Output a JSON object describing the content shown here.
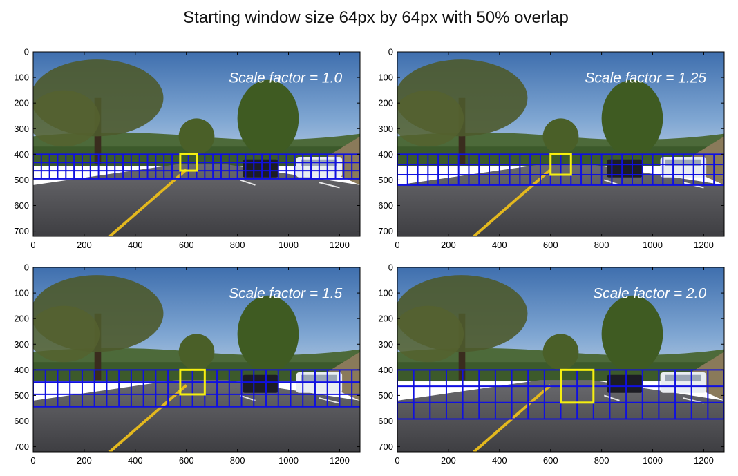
{
  "figure": {
    "title": "Starting window size 64px by 64px with 50% overlap"
  },
  "colors": {
    "search_grid": "#1010e0",
    "highlight_window": "#f5ef10",
    "scale_label": "#ffffff"
  },
  "chart_data": [
    {
      "type": "image",
      "annotation": "Scale factor = 1.0",
      "scale_factor": 1.0,
      "xlim": [
        0,
        1280
      ],
      "ylim": [
        720,
        0
      ],
      "xticks": [
        0,
        200,
        400,
        600,
        800,
        1000,
        1200
      ],
      "yticks": [
        0,
        100,
        200,
        300,
        400,
        500,
        600,
        700
      ],
      "grid": {
        "x_start": 0,
        "x_end": 1280,
        "y_start": 400,
        "y_end": 496,
        "step": 32
      },
      "highlight": {
        "x": 576,
        "y": 400,
        "w": 64,
        "h": 64
      }
    },
    {
      "type": "image",
      "annotation": "Scale factor = 1.25",
      "scale_factor": 1.25,
      "xlim": [
        0,
        1280
      ],
      "ylim": [
        720,
        0
      ],
      "xticks": [
        0,
        200,
        400,
        600,
        800,
        1000,
        1200
      ],
      "yticks": [
        0,
        100,
        200,
        300,
        400,
        500,
        600,
        700
      ],
      "grid": {
        "x_start": 0,
        "x_end": 1280,
        "y_start": 400,
        "y_end": 520,
        "step": 40
      },
      "highlight": {
        "x": 600,
        "y": 400,
        "w": 80,
        "h": 80
      }
    },
    {
      "type": "image",
      "annotation": "Scale factor = 1.5",
      "scale_factor": 1.5,
      "xlim": [
        0,
        1280
      ],
      "ylim": [
        720,
        0
      ],
      "xticks": [
        0,
        200,
        400,
        600,
        800,
        1000,
        1200
      ],
      "yticks": [
        0,
        100,
        200,
        300,
        400,
        500,
        600,
        700
      ],
      "grid": {
        "x_start": 0,
        "x_end": 1280,
        "y_start": 400,
        "y_end": 544,
        "step": 48
      },
      "highlight": {
        "x": 576,
        "y": 400,
        "w": 96,
        "h": 96
      }
    },
    {
      "type": "image",
      "annotation": "Scale factor = 2.0",
      "scale_factor": 2.0,
      "xlim": [
        0,
        1280
      ],
      "ylim": [
        720,
        0
      ],
      "xticks": [
        0,
        200,
        400,
        600,
        800,
        1000,
        1200
      ],
      "yticks": [
        0,
        100,
        200,
        300,
        400,
        500,
        600,
        700
      ],
      "grid": {
        "x_start": 0,
        "x_end": 1280,
        "y_start": 400,
        "y_end": 592,
        "step": 64
      },
      "highlight": {
        "x": 640,
        "y": 400,
        "w": 128,
        "h": 128
      }
    }
  ]
}
